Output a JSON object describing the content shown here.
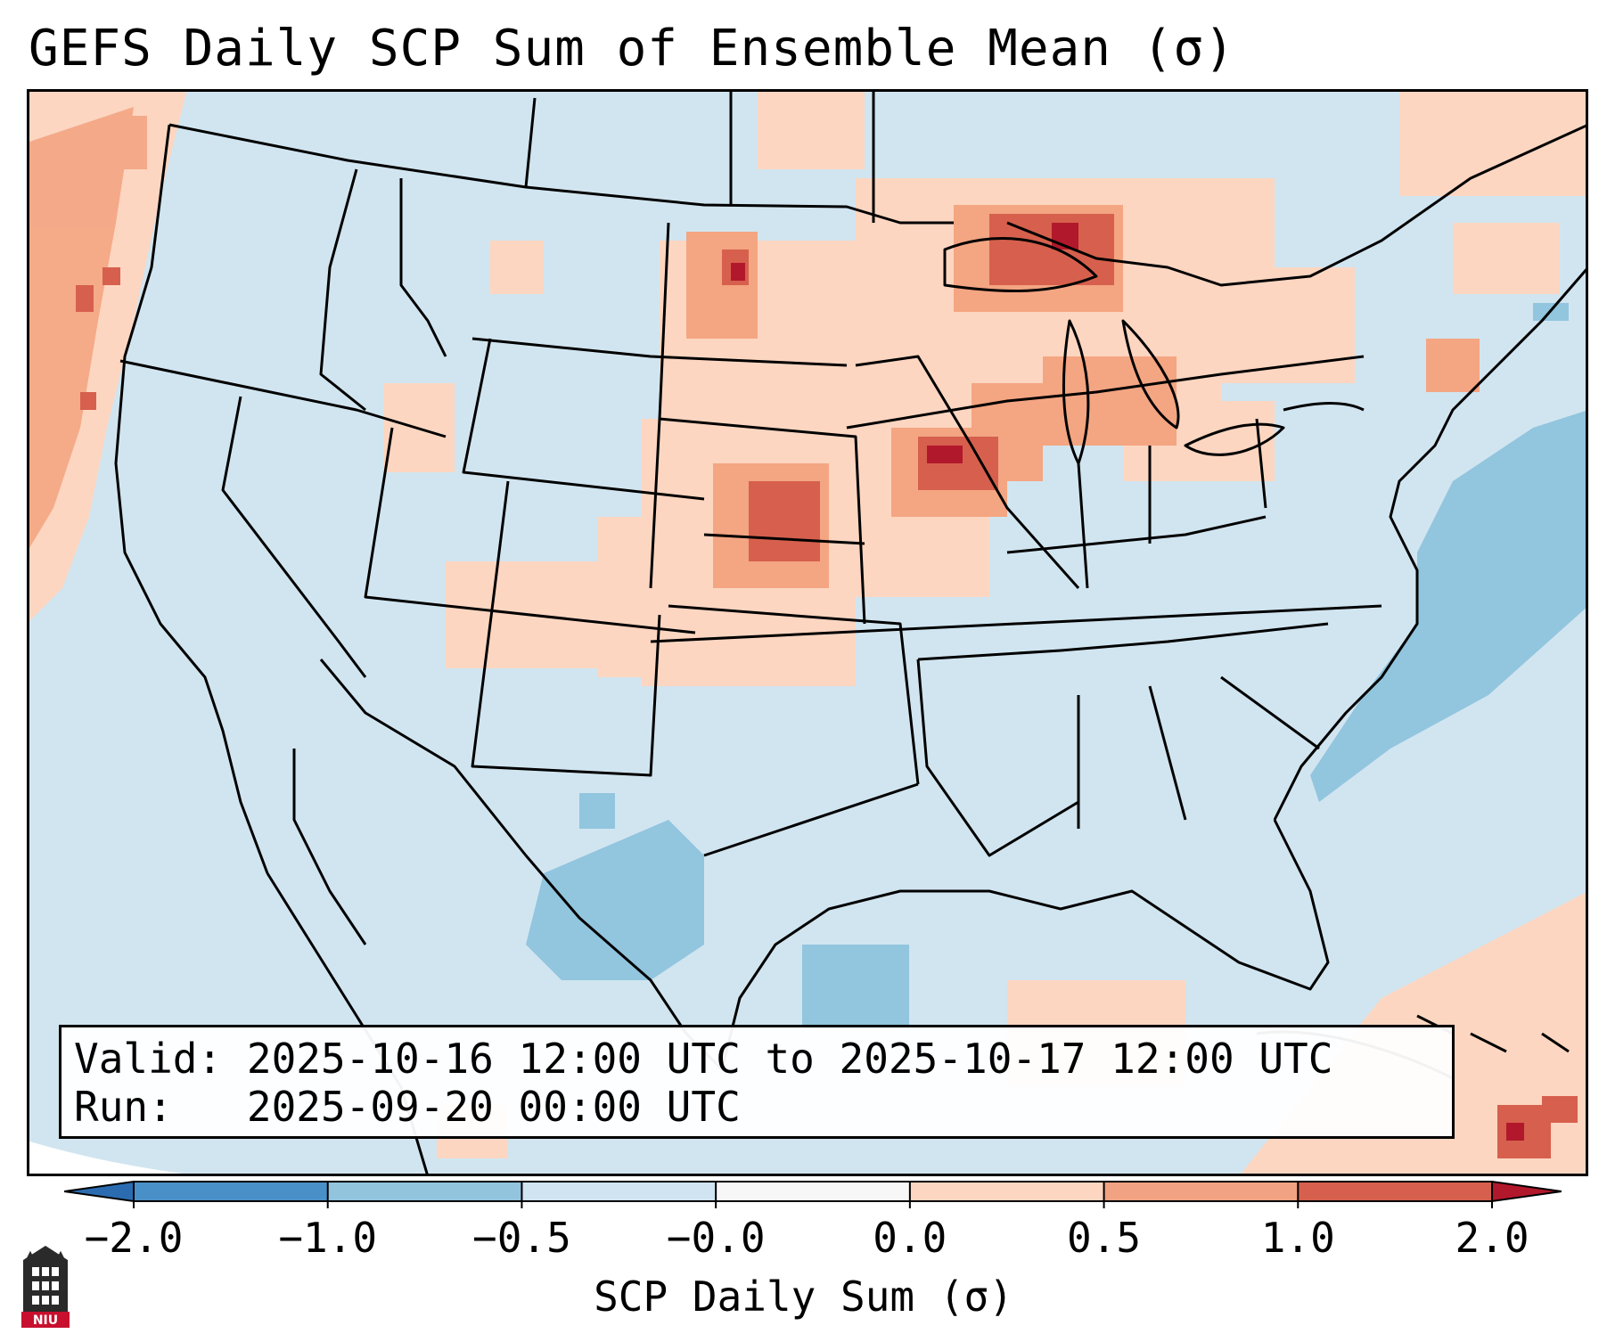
{
  "title": "GEFS Daily SCP Sum of Ensemble Mean (σ)",
  "info_box": {
    "valid_label": "Valid:",
    "valid_value": "2025-10-16 12:00 UTC to 2025-10-17 12:00 UTC",
    "run_label": "Run:",
    "run_value": "2025-09-20 00:00 UTC"
  },
  "colorbar": {
    "label": "SCP Daily Sum (σ)",
    "ticks": [
      "−2.0",
      "−1.0",
      "−0.5",
      "−0.0",
      "0.0",
      "0.5",
      "1.0",
      "2.0"
    ],
    "colors": [
      "#2b6cb0",
      "#4a90c8",
      "#92c4de",
      "#d0e4f1",
      "#f7f7f7",
      "#fcd6c1",
      "#f0a283",
      "#d6604d",
      "#b2182b"
    ]
  },
  "map": {
    "region": "Continental United States",
    "background_color": "#d1e5f0",
    "anomaly_areas": [
      {
        "name": "pacific-northwest-offshore",
        "level": 0.7
      },
      {
        "name": "upper-great-lakes",
        "level": 1.4
      },
      {
        "name": "iowa-nebraska",
        "level": 1.2
      },
      {
        "name": "south-dakota",
        "level": 0.9
      },
      {
        "name": "western-atlantic",
        "level": -0.7
      },
      {
        "name": "south-texas-mexico",
        "level": -0.6
      },
      {
        "name": "caribbean",
        "level": 0.8
      }
    ]
  },
  "logo": {
    "text": "NIU",
    "icon": "niu-building-icon"
  }
}
